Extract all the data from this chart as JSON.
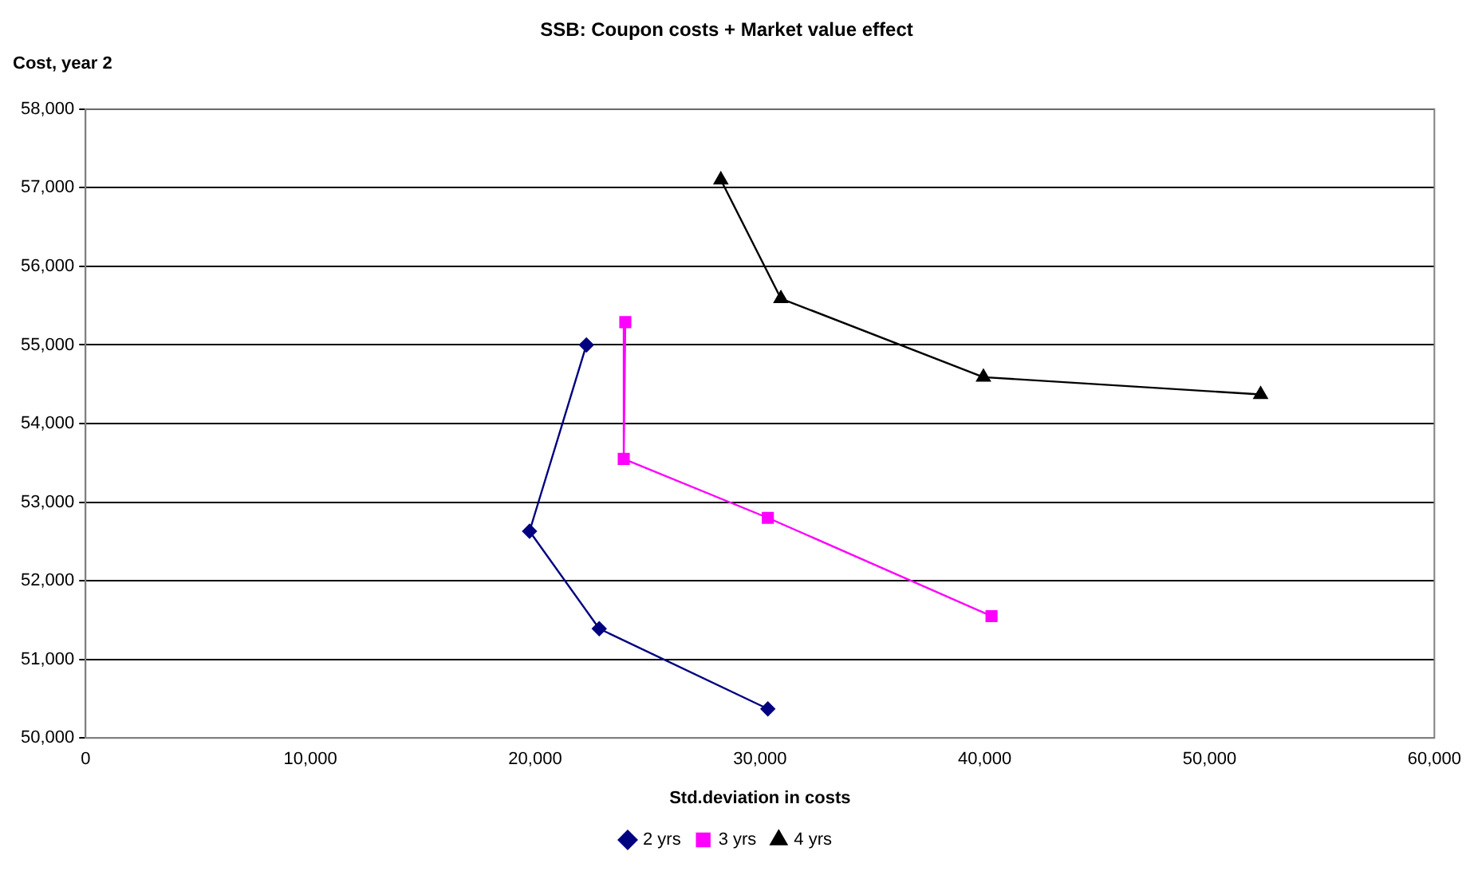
{
  "chart_data": {
    "type": "line",
    "title": "SSB: Coupon costs + Market value effect",
    "xlabel": "Std.deviation in costs",
    "ylabel": "Cost, year 2",
    "xlim": [
      0,
      60000
    ],
    "xticks": [
      0,
      {
        "value": 10000,
        "label": "10,000"
      },
      {
        "value": 20000,
        "label": "20,000"
      },
      {
        "value": 30000,
        "label": "30,000"
      },
      {
        "value": 40000,
        "label": "40,000"
      },
      {
        "value": 50000,
        "label": "50,000"
      },
      {
        "value": 60000,
        "label": "60,000"
      }
    ],
    "ylim": [
      50000,
      58000
    ],
    "yticks": [
      {
        "value": 50000,
        "label": "50,000"
      },
      {
        "value": 51000,
        "label": "51,000"
      },
      {
        "value": 52000,
        "label": "52,000"
      },
      {
        "value": 53000,
        "label": "53,000"
      },
      {
        "value": 54000,
        "label": "54,000"
      },
      {
        "value": 55000,
        "label": "55,000"
      },
      {
        "value": 56000,
        "label": "56,000"
      },
      {
        "value": 57000,
        "label": "57,000"
      },
      {
        "value": 58000,
        "label": "58,000"
      }
    ],
    "grid": "y",
    "legend": "bottom",
    "line_style": "solid",
    "series": [
      {
        "name": "2 yrs",
        "color": "#000080",
        "marker": "diamond",
        "x": [
          22280,
          19750,
          22850,
          30350
        ],
        "values": [
          55000,
          52630,
          51390,
          50370
        ]
      },
      {
        "name": "3 yrs",
        "color": "#ff00ff",
        "marker": "square",
        "x": [
          24010,
          23940,
          30350,
          40300
        ],
        "values": [
          55290,
          53550,
          52800,
          51550
        ]
      },
      {
        "name": "4 yrs",
        "color": "#000000",
        "marker": "triangle",
        "x": [
          28260,
          30930,
          39940,
          52270
        ],
        "values": [
          57100,
          55590,
          54590,
          54370
        ]
      }
    ]
  }
}
